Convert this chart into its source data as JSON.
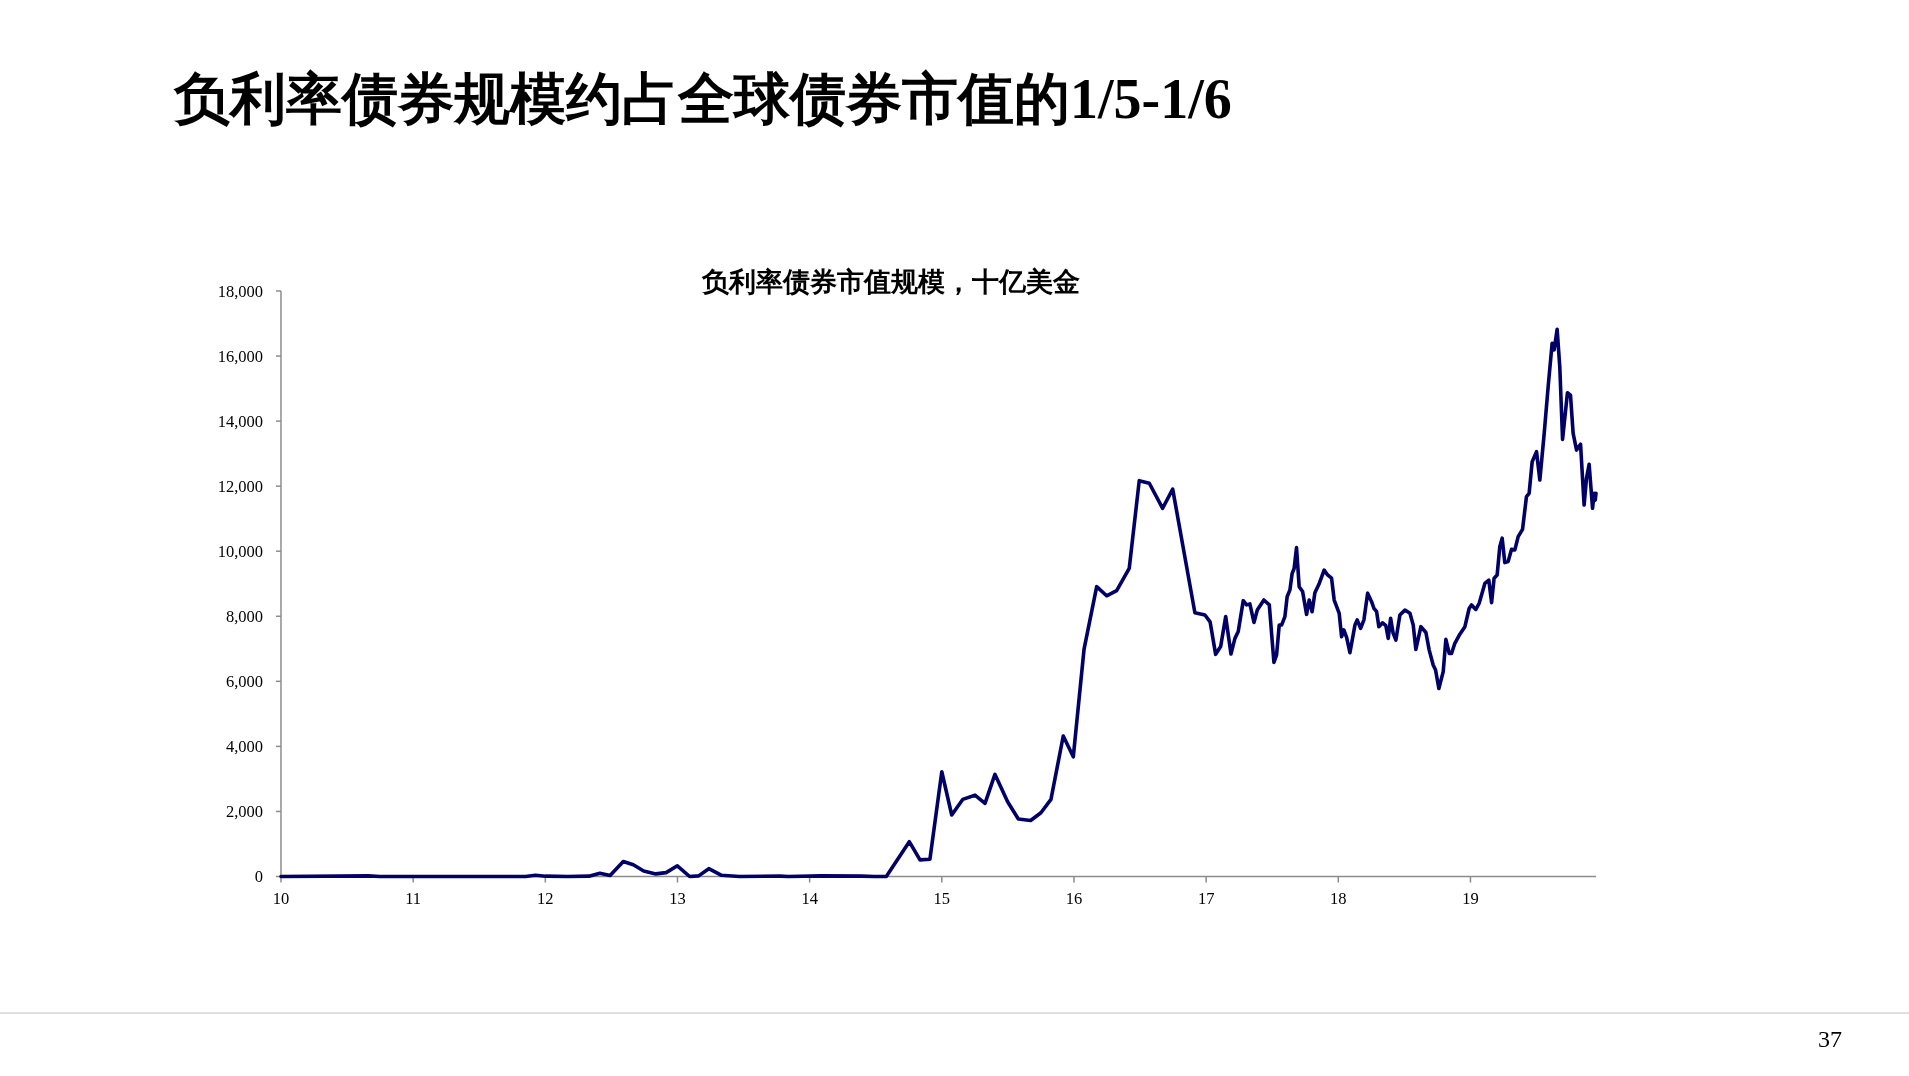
{
  "chart_data": {
    "type": "line",
    "title": "负利率债券规模约占全球债券市值的1/5-1/6",
    "subtitle": "负利率债券市值规模，十亿美金",
    "x": [
      2010.0,
      2010.66,
      2010.75,
      2011.85,
      2011.925,
      2012.0,
      2012.17,
      2012.33,
      2012.413,
      2012.49,
      2012.59,
      2012.666,
      2012.744,
      2012.836,
      2012.914,
      2012.999,
      2013.092,
      2013.16,
      2013.237,
      2013.33,
      2013.47,
      2013.776,
      2013.84,
      2014.086,
      2014.395,
      2014.487,
      2014.58,
      2014.754,
      2014.835,
      2014.91,
      2015.0,
      2015.075,
      2015.158,
      2015.251,
      2015.327,
      2015.402,
      2015.498,
      2015.579,
      2015.672,
      2015.75,
      2015.826,
      2015.919,
      2015.995,
      2016.076,
      2016.172,
      2016.247,
      2016.323,
      2016.418,
      2016.494,
      2016.57,
      2016.671,
      2016.747,
      2016.915,
      2016.991,
      2017.03,
      2017.072,
      2017.11,
      2017.148,
      2017.188,
      2017.218,
      2017.243,
      2017.281,
      2017.306,
      2017.331,
      2017.362,
      2017.387,
      2017.437,
      2017.478,
      2017.513,
      2017.533,
      2017.553,
      2017.571,
      2017.596,
      2017.613,
      2017.634,
      2017.651,
      2017.666,
      2017.684,
      2017.704,
      2017.73,
      2017.76,
      2017.78,
      2017.802,
      2017.823,
      2017.856,
      2017.893,
      2017.919,
      2017.949,
      2017.969,
      2018.007,
      2018.025,
      2018.042,
      2018.063,
      2018.088,
      2018.126,
      2018.143,
      2018.169,
      2018.194,
      2018.222,
      2018.252,
      2018.27,
      2018.29,
      2018.307,
      2018.335,
      2018.36,
      2018.378,
      2018.396,
      2018.415,
      2018.436,
      2018.466,
      2018.504,
      2018.542,
      2018.567,
      2018.587,
      2018.625,
      2018.663,
      2018.688,
      2018.718,
      2018.736,
      2018.761,
      2018.794,
      2018.814,
      2018.839,
      2018.857,
      2018.882,
      2018.92,
      2018.958,
      2018.99,
      2019.008,
      2019.041,
      2019.066,
      2019.109,
      2019.139,
      2019.16,
      2019.179,
      2019.202,
      2019.222,
      2019.24,
      2019.26,
      2019.285,
      2019.311,
      2019.336,
      2019.361,
      2019.394,
      2019.424,
      2019.444,
      2019.467,
      2019.5,
      2019.525,
      2019.558,
      2019.588,
      2019.618,
      2019.633,
      2019.656,
      2019.676,
      2019.697,
      2019.734,
      2019.757,
      2019.777,
      2019.803,
      2019.833,
      2019.86,
      2019.878,
      2019.898,
      2019.924,
      2019.936,
      2019.944,
      2019.95
    ],
    "series": [
      {
        "color": "#000066",
        "values": [
          0,
          20,
          0,
          0,
          40,
          10,
          0,
          10,
          100,
          30,
          460,
          360,
          170,
          80,
          120,
          330,
          0,
          20,
          240,
          40,
          0,
          10,
          0,
          20,
          10,
          0,
          0,
          1070,
          510,
          530,
          3220,
          1890,
          2370,
          2500,
          2250,
          3140,
          2300,
          1770,
          1720,
          1960,
          2370,
          4320,
          3680,
          6980,
          8910,
          8630,
          8790,
          9470,
          12170,
          12090,
          11320,
          11910,
          8110,
          8040,
          7830,
          6830,
          7070,
          7990,
          6840,
          7320,
          7530,
          8480,
          8350,
          8380,
          7810,
          8190,
          8500,
          8350,
          6580,
          6810,
          7730,
          7730,
          7990,
          8600,
          8810,
          9320,
          9470,
          10110,
          8910,
          8760,
          8060,
          8500,
          8140,
          8720,
          9010,
          9420,
          9270,
          9170,
          8500,
          8090,
          7370,
          7580,
          7350,
          6880,
          7730,
          7890,
          7630,
          7890,
          8710,
          8450,
          8240,
          8140,
          7680,
          7800,
          7710,
          7320,
          7940,
          7480,
          7270,
          8040,
          8190,
          8090,
          7730,
          6980,
          7680,
          7500,
          6960,
          6500,
          6350,
          5780,
          6300,
          7290,
          6860,
          6860,
          7170,
          7450,
          7680,
          8240,
          8350,
          8210,
          8400,
          9010,
          9110,
          8420,
          9170,
          9270,
          10140,
          10400,
          9650,
          9680,
          10060,
          10040,
          10450,
          10670,
          11680,
          11780,
          12750,
          13060,
          12190,
          13620,
          15060,
          16390,
          16190,
          16820,
          15670,
          13440,
          14870,
          14800,
          13620,
          13110,
          13290,
          11420,
          12240,
          12670,
          11320,
          11780,
          11570,
          11780
        ]
      }
    ],
    "xlim": [
      2010,
      2019.95
    ],
    "xticks": [
      {
        "value": 2010,
        "label": "10"
      },
      {
        "value": 2011,
        "label": "11"
      },
      {
        "value": 2012,
        "label": "12"
      },
      {
        "value": 2013,
        "label": "13"
      },
      {
        "value": 2014,
        "label": "14"
      },
      {
        "value": 2015,
        "label": "15"
      },
      {
        "value": 2016,
        "label": "16"
      },
      {
        "value": 2017,
        "label": "17"
      },
      {
        "value": 2018,
        "label": "18"
      },
      {
        "value": 2019,
        "label": "19"
      }
    ],
    "ylim": [
      0,
      18000
    ],
    "yticks": [
      0,
      {
        "value": 2000,
        "label": "2,000"
      },
      {
        "value": 4000,
        "label": "4,000"
      },
      {
        "value": 6000,
        "label": "6,000"
      },
      {
        "value": 8000,
        "label": "8,000"
      },
      {
        "value": 10000,
        "label": "10,000"
      },
      {
        "value": 12000,
        "label": "12,000"
      },
      {
        "value": 14000,
        "label": "14,000"
      },
      {
        "value": 16000,
        "label": "16,000"
      },
      {
        "value": 18000,
        "label": "18,000"
      }
    ],
    "line_style": "solid",
    "annotations": [
      "37"
    ]
  }
}
